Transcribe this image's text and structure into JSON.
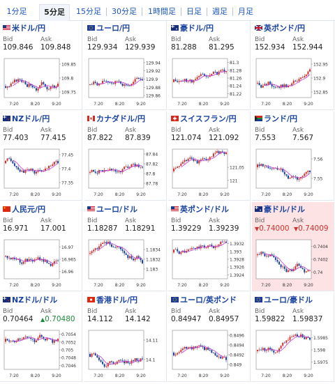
{
  "tabs": [
    {
      "label": "1分足",
      "active": false
    },
    {
      "label": "5分足",
      "active": true
    },
    {
      "label": "15分足",
      "active": false
    },
    {
      "label": "30分足",
      "active": false
    },
    {
      "label": "1時間足",
      "active": false
    },
    {
      "label": "日足",
      "active": false
    },
    {
      "label": "週足",
      "active": false
    },
    {
      "label": "月足",
      "active": false
    }
  ],
  "bid_label": "Bid",
  "ask_label": "Ask",
  "colors": {
    "up": "#d0312d",
    "down": "#1a44a0",
    "ma": "#c23bd6",
    "axis": "#999999"
  },
  "x_ticks": [
    "7:20",
    "8:20",
    "9:20"
  ],
  "cards": [
    {
      "title": "米ドル/円",
      "flag": "us-flag-icon",
      "bid": "109.846",
      "ask": "109.848",
      "ticks": [
        "109.85",
        "109.8",
        "109.75"
      ],
      "ylim": [
        109.73,
        109.87
      ],
      "seed": 3,
      "trend": 0.6
    },
    {
      "title": "ユーロ/円",
      "flag": "eu-flag-icon",
      "bid": "129.934",
      "ask": "129.939",
      "ticks": [
        "129.94",
        "129.92",
        "129.9",
        "129.88",
        "129.86"
      ],
      "ylim": [
        129.855,
        129.95
      ],
      "seed": 7,
      "trend": 0.5
    },
    {
      "title": "豪ドル/円",
      "flag": "au-flag-icon",
      "bid": "81.288",
      "ask": "81.295",
      "ticks": [
        "81.3",
        "81.28",
        "81.26",
        "81.24",
        "81.22"
      ],
      "ylim": [
        81.21,
        81.31
      ],
      "seed": 11,
      "trend": 0.3
    },
    {
      "title": "英ポンド/円",
      "flag": "gb-flag-icon",
      "bid": "152.934",
      "ask": "152.944",
      "ticks": [
        "152.95",
        "152.9",
        "152.85"
      ],
      "ylim": [
        152.83,
        152.97
      ],
      "seed": 13,
      "trend": 0.4
    },
    {
      "title": "NZドル/円",
      "flag": "nz-flag-icon",
      "bid": "77.403",
      "ask": "77.415",
      "ticks": [
        "77.45",
        "77.4",
        "77.35"
      ],
      "ylim": [
        77.33,
        77.47
      ],
      "seed": 17,
      "trend": -0.4
    },
    {
      "title": "カナダドル/円",
      "flag": "ca-flag-icon",
      "bid": "87.822",
      "ask": "87.839",
      "ticks": [
        "87.84",
        "87.82",
        "87.8",
        "87.78"
      ],
      "ylim": [
        87.77,
        87.85
      ],
      "seed": 19,
      "trend": 0.3
    },
    {
      "title": "スイスフラン/円",
      "flag": "ch-flag-icon",
      "bid": "121.074",
      "ask": "121.092",
      "ticks": [
        "121.05",
        "121"
      ],
      "ylim": [
        120.97,
        121.12
      ],
      "seed": 23,
      "trend": 0.2
    },
    {
      "title": "ランド/円",
      "flag": "za-flag-icon",
      "bid": "7.553",
      "ask": "7.567",
      "ticks": [
        "7.56",
        "7.55"
      ],
      "ylim": [
        7.545,
        7.565
      ],
      "seed": 29,
      "trend": -0.1
    },
    {
      "title": "人民元/円",
      "flag": "cn-flag-icon",
      "bid": "16.971",
      "ask": "17.001",
      "ticks": [
        "16.97",
        "16.965",
        "16.96"
      ],
      "ylim": [
        16.957,
        16.973
      ],
      "seed": 31,
      "trend": -0.2
    },
    {
      "title": "ユーロ/ドル",
      "flag": "us-flag-icon",
      "bid": "1.18287",
      "ask": "1.18291",
      "ticks": [
        "1.1834",
        "1.1832",
        "1.183"
      ],
      "ylim": [
        1.1828,
        1.1836
      ],
      "seed": 37,
      "trend": -0.4
    },
    {
      "title": "英ポンド/ドル",
      "flag": "us-flag-icon",
      "bid": "1.39229",
      "ask": "1.39239",
      "ticks": [
        "1.3932",
        "1.393",
        "1.3928",
        "1.3926",
        "1.3924"
      ],
      "ylim": [
        1.3923,
        1.3933
      ],
      "seed": 41,
      "trend": -0.5
    },
    {
      "title": "豪ドル/ドル",
      "flag": "au-flag-icon",
      "bid": "0.74000",
      "ask": "0.74009",
      "bid_arrow": "down",
      "ask_arrow": "down",
      "highlight": true,
      "ticks": [
        "0.7404",
        "0.7402",
        "0.74"
      ],
      "ylim": [
        0.7399,
        0.7405
      ],
      "seed": 43,
      "trend": -0.3
    },
    {
      "title": "NZドル/ドル",
      "flag": "nz-flag-icon",
      "bid": "0.70464",
      "ask": "0.70480",
      "ask_arrow": "up",
      "ticks": [
        "0.7054",
        "0.7052",
        "0.705",
        "0.7048",
        "0.7046"
      ],
      "ylim": [
        0.7045,
        0.7055
      ],
      "seed": 47,
      "trend": -0.6
    },
    {
      "title": "香港ドル/円",
      "flag": "hk-flag-icon",
      "bid": "14.112",
      "ask": "14.142",
      "ticks": [
        "14.11",
        "14.1"
      ],
      "ylim": [
        14.095,
        14.115
      ],
      "seed": 53,
      "trend": 0.3
    },
    {
      "title": "ユーロ/英ポンド",
      "flag": "eu-flag-icon",
      "bid": "0.84947",
      "ask": "0.84957",
      "ticks": [
        "0.8496",
        "0.8494",
        "0.8492",
        "0.849"
      ],
      "ylim": [
        0.8489,
        0.8497
      ],
      "seed": 59,
      "trend": 0.2
    },
    {
      "title": "ユーロ/豪ドル",
      "flag": "eu-flag-icon",
      "bid": "1.59822",
      "ask": "1.59837",
      "ticks": [
        "1.5985",
        "1.598",
        "1.5975"
      ],
      "ylim": [
        1.5972,
        1.5988
      ],
      "seed": 61,
      "trend": 0.1
    }
  ]
}
